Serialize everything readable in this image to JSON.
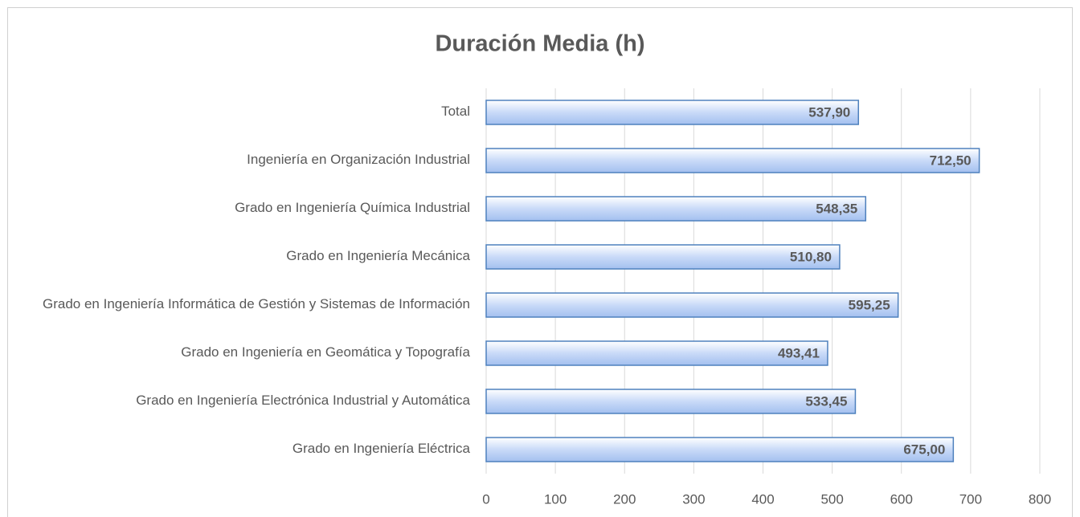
{
  "chart_data": {
    "type": "bar",
    "orientation": "horizontal",
    "title": "Duración Media (h)",
    "categories": [
      "Total",
      "Ingeniería en Organización Industrial",
      "Grado en Ingeniería Química Industrial",
      "Grado en Ingeniería Mecánica",
      "Grado en Ingeniería Informática de Gestión y Sistemas de Información",
      "Grado en Ingeniería en Geomática y Topografía",
      "Grado en Ingeniería Electrónica Industrial y Automática",
      "Grado en Ingeniería Eléctrica"
    ],
    "values": [
      537.9,
      712.5,
      548.35,
      510.8,
      595.25,
      493.41,
      533.45,
      675.0
    ],
    "value_labels": [
      "537,90",
      "712,50",
      "548,35",
      "510,80",
      "595,25",
      "493,41",
      "533,45",
      "675,00"
    ],
    "color": "#4f81bd",
    "xlim": [
      0,
      800
    ],
    "xticks": [
      0,
      100,
      200,
      300,
      400,
      500,
      600,
      700,
      800
    ],
    "grid": true
  }
}
